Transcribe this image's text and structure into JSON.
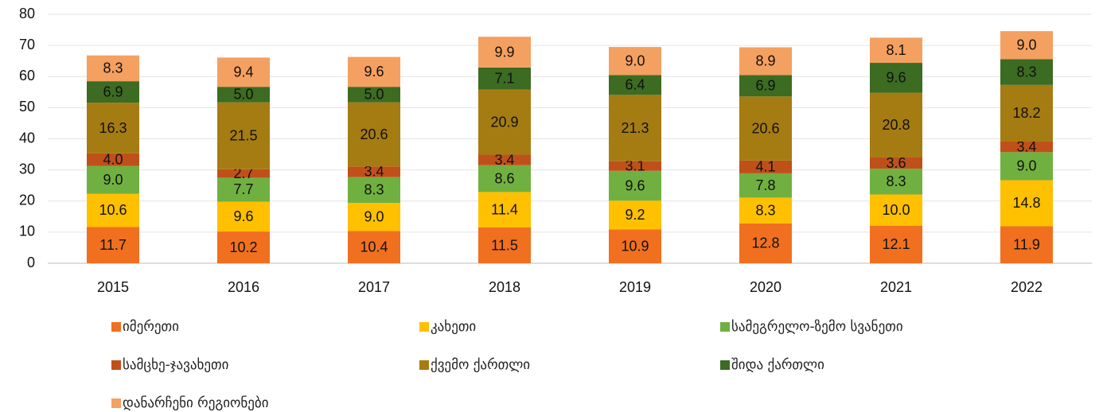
{
  "chart_data": {
    "type": "stacked_bar",
    "categories": [
      "2015",
      "2016",
      "2017",
      "2018",
      "2019",
      "2020",
      "2021",
      "2022"
    ],
    "ylim": [
      0,
      80
    ],
    "yticks": [
      0,
      10,
      20,
      30,
      40,
      50,
      60,
      70,
      80
    ],
    "grid": true,
    "legend": "bottom",
    "series": [
      {
        "name": "იმერეთი",
        "color": "#f07020",
        "values": [
          11.7,
          10.2,
          10.4,
          11.5,
          10.9,
          12.8,
          12.1,
          11.9
        ],
        "value_labels": [
          "11.7",
          "10.2",
          "10.4",
          "11.5",
          "10.9",
          "12.8",
          "12.1",
          "11.9"
        ]
      },
      {
        "name": "კახეთი",
        "color": "#ffc000",
        "values": [
          10.6,
          9.6,
          9.0,
          11.4,
          9.2,
          8.3,
          10.0,
          14.8
        ],
        "value_labels": [
          "10.6",
          "9.6",
          "9.0",
          "11.4",
          "9.2",
          "8.3",
          "10.0",
          "14.8"
        ]
      },
      {
        "name": "სამეგრელო-ზემო სვანეთი",
        "color": "#70b040",
        "values": [
          9.0,
          7.7,
          8.3,
          8.6,
          9.6,
          7.8,
          8.3,
          9.0
        ],
        "value_labels": [
          "9.0",
          "7.7",
          "8.3",
          "8.6",
          "9.6",
          "7.8",
          "8.3",
          "9.0"
        ]
      },
      {
        "name": "სამცხე-ჯავახეთი",
        "color": "#c0501a",
        "values": [
          4.0,
          2.7,
          3.4,
          3.4,
          3.1,
          4.1,
          3.6,
          3.4
        ],
        "value_labels": [
          "4.0",
          "2.7",
          "3.4",
          "3.4",
          "3.1",
          "4.1",
          "3.6",
          "3.4"
        ]
      },
      {
        "name": "ქვემო ქართლი",
        "color": "#a57c12",
        "values": [
          16.3,
          21.5,
          20.6,
          20.9,
          21.3,
          20.6,
          20.8,
          18.2
        ],
        "value_labels": [
          "16.3",
          "21.5",
          "20.6",
          "20.9",
          "21.3",
          "20.6",
          "20.8",
          "18.2"
        ]
      },
      {
        "name": "შიდა ქართლი",
        "color": "#3c6b22",
        "values": [
          6.9,
          5.0,
          5.0,
          7.1,
          6.4,
          6.9,
          9.6,
          8.3
        ],
        "value_labels": [
          "6.9",
          "5.0",
          "5.0",
          "7.1",
          "6.4",
          "6.9",
          "9.6",
          "8.3"
        ]
      },
      {
        "name": "დანარჩენი რეგიონები",
        "color": "#f4a060",
        "values": [
          8.3,
          9.4,
          9.6,
          9.9,
          9.0,
          8.9,
          8.1,
          9.0
        ],
        "value_labels": [
          "8.3",
          "9.4",
          "9.6",
          "9.9",
          "9.0",
          "8.9",
          "8.1",
          "9.0"
        ]
      }
    ]
  }
}
